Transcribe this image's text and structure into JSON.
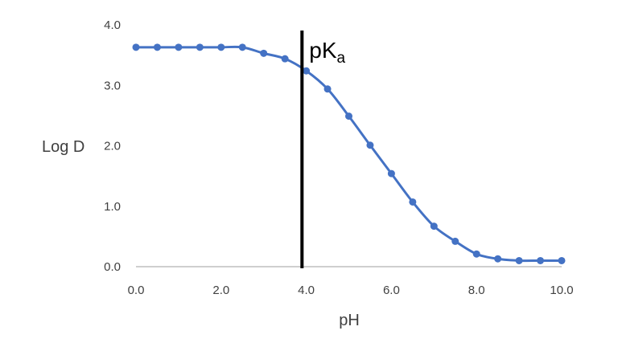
{
  "chart_data": {
    "type": "scatter",
    "xlabel": "pH",
    "ylabel": "Log D",
    "xlim": [
      0,
      10
    ],
    "ylim": [
      0,
      4
    ],
    "x_ticks": [
      "0.0",
      "2.0",
      "4.0",
      "6.0",
      "8.0",
      "10.0"
    ],
    "y_ticks": [
      "0.0",
      "1.0",
      "2.0",
      "3.0",
      "4.0"
    ],
    "grid": false,
    "legend": "none",
    "series": [
      {
        "color": "#4472c4",
        "marker": "circle",
        "line": "smooth",
        "points": [
          {
            "x": 0.0,
            "y": 3.63
          },
          {
            "x": 0.5,
            "y": 3.63
          },
          {
            "x": 1.0,
            "y": 3.63
          },
          {
            "x": 1.5,
            "y": 3.63
          },
          {
            "x": 2.0,
            "y": 3.63
          },
          {
            "x": 2.5,
            "y": 3.63
          },
          {
            "x": 3.0,
            "y": 3.53
          },
          {
            "x": 3.5,
            "y": 3.44
          },
          {
            "x": 4.0,
            "y": 3.24
          },
          {
            "x": 4.5,
            "y": 2.94
          },
          {
            "x": 5.0,
            "y": 2.49
          },
          {
            "x": 5.5,
            "y": 2.01
          },
          {
            "x": 6.0,
            "y": 1.54
          },
          {
            "x": 6.5,
            "y": 1.07
          },
          {
            "x": 7.0,
            "y": 0.67
          },
          {
            "x": 7.5,
            "y": 0.42
          },
          {
            "x": 8.0,
            "y": 0.21
          },
          {
            "x": 8.5,
            "y": 0.13
          },
          {
            "x": 9.0,
            "y": 0.1
          },
          {
            "x": 9.5,
            "y": 0.1
          },
          {
            "x": 10.0,
            "y": 0.1
          }
        ]
      }
    ],
    "annotations": [
      {
        "type": "vline",
        "x": 3.9,
        "color": "#000000",
        "label": "pK",
        "label_subscript": "a"
      }
    ]
  }
}
